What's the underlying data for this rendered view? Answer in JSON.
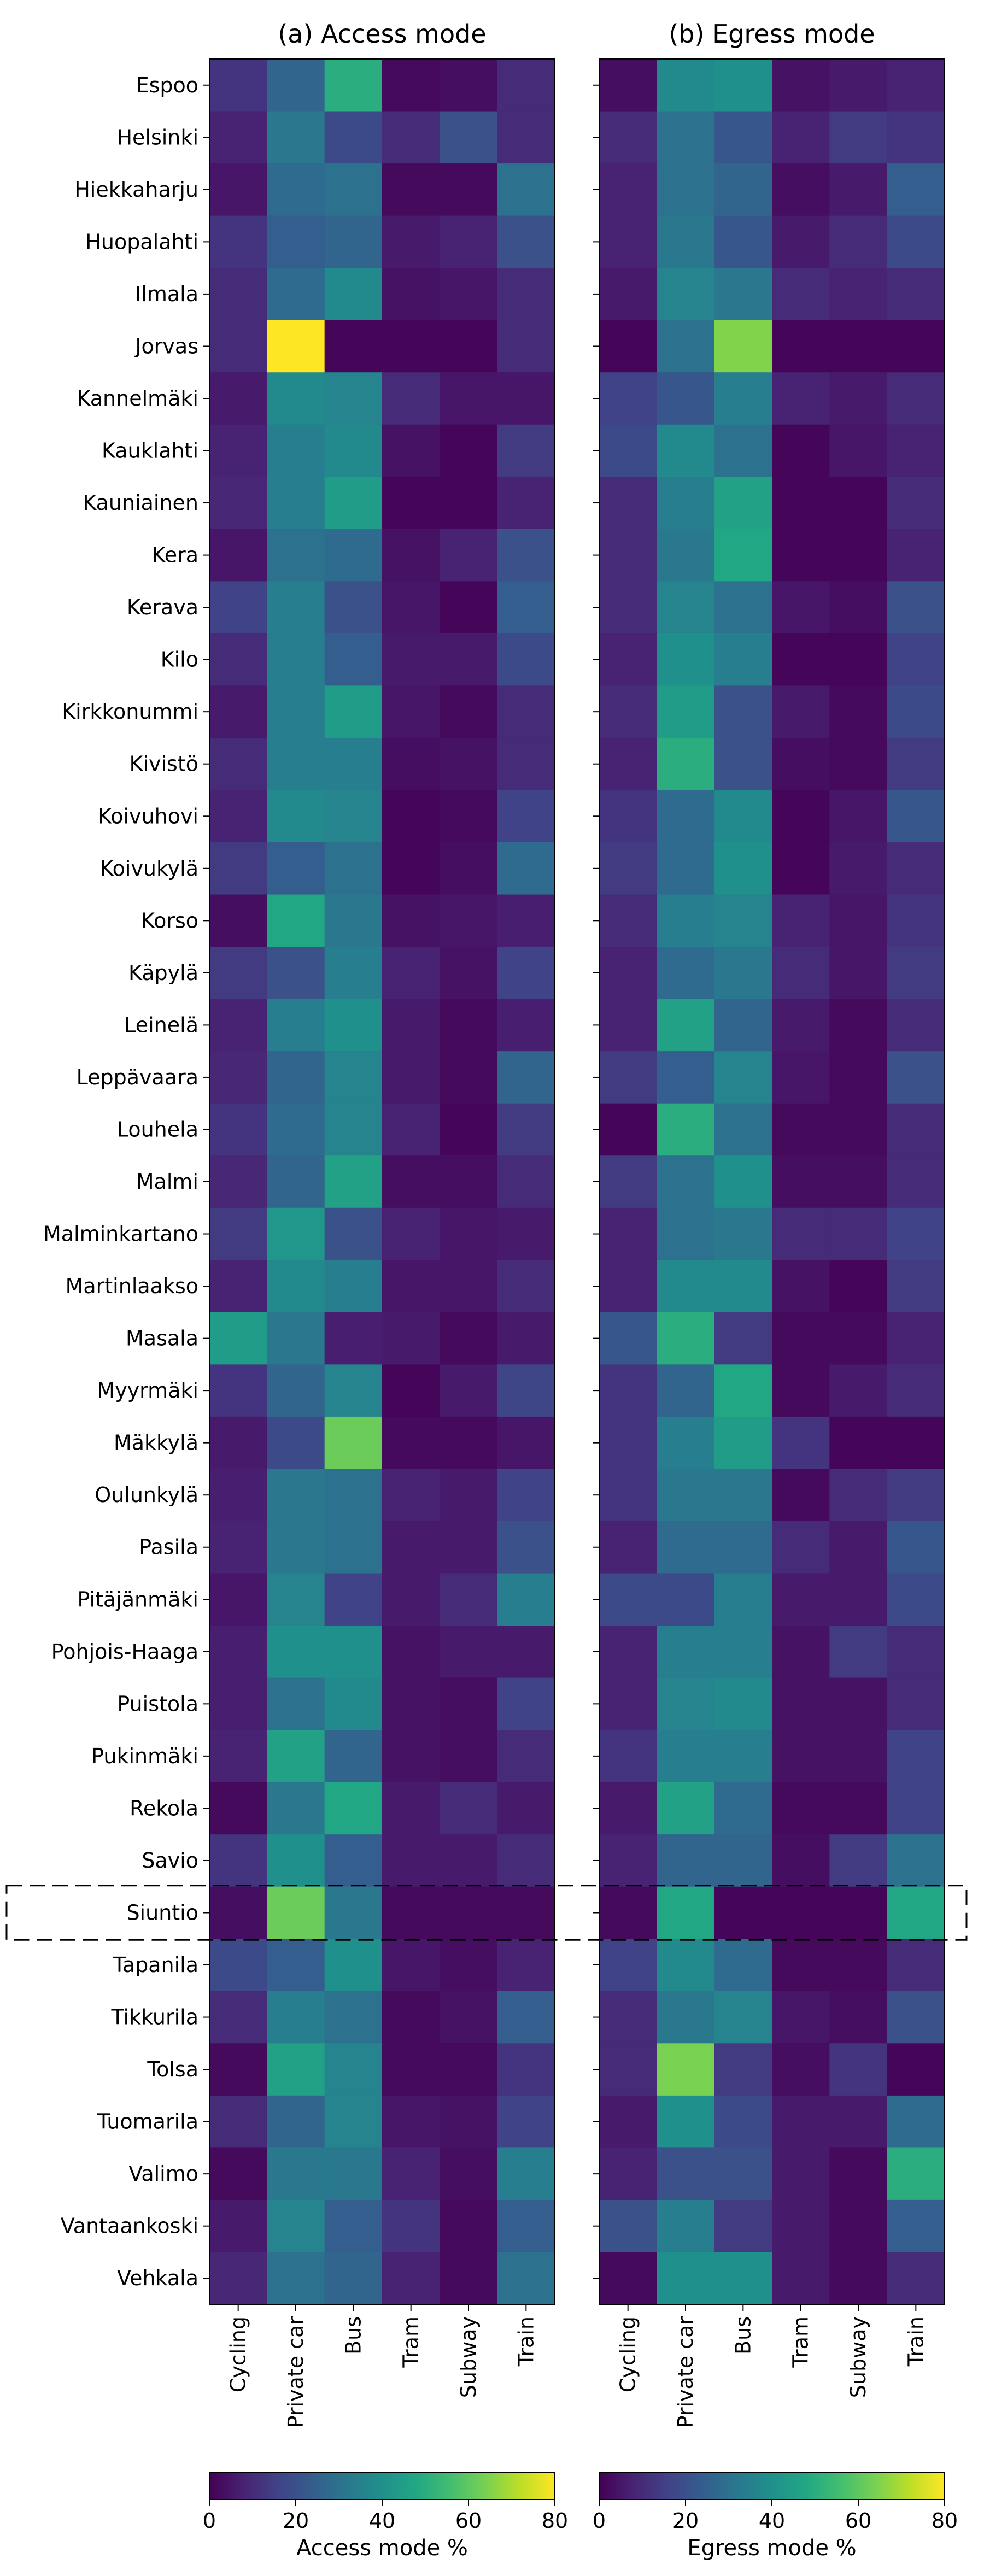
{
  "chart_data": [
    {
      "type": "heatmap",
      "title": "(a) Access mode",
      "x_categories": [
        "Cycling",
        "Private car",
        "Bus",
        "Tram",
        "Subway",
        "Train"
      ],
      "y_categories": [
        "Espoo",
        "Helsinki",
        "Hiekkaharju",
        "Huopalahti",
        "Ilmala",
        "Jorvas",
        "Kannelmäki",
        "Kauklahti",
        "Kauniainen",
        "Kera",
        "Kerava",
        "Kilo",
        "Kirkkonummi",
        "Kivistö",
        "Koivuhovi",
        "Koivukylä",
        "Korso",
        "Käpylä",
        "Leinelä",
        "Leppävaara",
        "Louhela",
        "Malmi",
        "Malminkartano",
        "Martinlaakso",
        "Masala",
        "Myyrmäki",
        "Mäkkylä",
        "Oulunkylä",
        "Pasila",
        "Pitäjänmäki",
        "Pohjois-Haaga",
        "Puistola",
        "Pukinmäki",
        "Rekola",
        "Savio",
        "Siuntio",
        "Tapanila",
        "Tikkurila",
        "Tolsa",
        "Tuomarila",
        "Valimo",
        "Vantaankoski",
        "Vehkala"
      ],
      "values": [
        [
          12,
          26,
          50,
          2,
          3,
          10
        ],
        [
          8,
          32,
          18,
          10,
          20,
          10
        ],
        [
          5,
          28,
          30,
          2,
          2,
          30
        ],
        [
          12,
          24,
          26,
          6,
          8,
          20
        ],
        [
          10,
          28,
          38,
          4,
          5,
          10
        ],
        [
          10,
          80,
          1,
          1,
          1,
          10
        ],
        [
          6,
          38,
          36,
          10,
          5,
          5
        ],
        [
          8,
          34,
          38,
          4,
          1,
          14
        ],
        [
          9,
          34,
          44,
          1,
          1,
          8
        ],
        [
          5,
          30,
          28,
          4,
          8,
          20
        ],
        [
          16,
          34,
          20,
          5,
          1,
          24
        ],
        [
          10,
          34,
          24,
          6,
          6,
          18
        ],
        [
          6,
          34,
          44,
          5,
          2,
          10
        ],
        [
          10,
          34,
          34,
          3,
          4,
          10
        ],
        [
          8,
          38,
          36,
          1,
          2,
          16
        ],
        [
          14,
          24,
          30,
          1,
          3,
          28
        ],
        [
          3,
          48,
          32,
          4,
          5,
          7
        ],
        [
          14,
          20,
          34,
          8,
          4,
          16
        ],
        [
          8,
          34,
          40,
          6,
          2,
          7
        ],
        [
          9,
          26,
          36,
          6,
          2,
          26
        ],
        [
          12,
          28,
          36,
          8,
          1,
          14
        ],
        [
          9,
          26,
          46,
          3,
          3,
          10
        ],
        [
          14,
          42,
          20,
          8,
          5,
          6
        ],
        [
          8,
          38,
          34,
          5,
          5,
          10
        ],
        [
          44,
          32,
          7,
          6,
          2,
          6
        ],
        [
          12,
          26,
          36,
          1,
          6,
          17
        ],
        [
          6,
          18,
          62,
          2,
          2,
          5
        ],
        [
          7,
          32,
          30,
          8,
          6,
          16
        ],
        [
          8,
          32,
          30,
          6,
          6,
          20
        ],
        [
          5,
          36,
          16,
          6,
          10,
          34
        ],
        [
          7,
          40,
          40,
          4,
          6,
          6
        ],
        [
          7,
          30,
          38,
          4,
          3,
          16
        ],
        [
          8,
          46,
          26,
          4,
          3,
          10
        ],
        [
          2,
          32,
          48,
          6,
          10,
          6
        ],
        [
          12,
          40,
          24,
          6,
          6,
          10
        ],
        [
          3,
          62,
          32,
          2,
          2,
          2
        ],
        [
          18,
          24,
          40,
          5,
          3,
          8
        ],
        [
          10,
          34,
          30,
          2,
          4,
          24
        ],
        [
          2,
          46,
          36,
          2,
          2,
          12
        ],
        [
          10,
          26,
          36,
          5,
          4,
          16
        ],
        [
          2,
          32,
          32,
          8,
          3,
          34
        ],
        [
          6,
          36,
          24,
          12,
          2,
          24
        ],
        [
          9,
          30,
          26,
          8,
          2,
          30
        ]
      ],
      "colorbar": {
        "label": "Access mode %",
        "range": [
          0,
          80
        ],
        "ticks": [
          0,
          20,
          40,
          60,
          80
        ]
      },
      "highlight": "Siuntio"
    },
    {
      "type": "heatmap",
      "title": "(b) Egress mode",
      "x_categories": [
        "Cycling",
        "Private car",
        "Bus",
        "Tram",
        "Subway",
        "Train"
      ],
      "y_categories": [
        "Espoo",
        "Helsinki",
        "Hiekkaharju",
        "Huopalahti",
        "Ilmala",
        "Jorvas",
        "Kannelmäki",
        "Kauklahti",
        "Kauniainen",
        "Kera",
        "Kerava",
        "Kilo",
        "Kirkkonummi",
        "Kivistö",
        "Koivuhovi",
        "Koivukylä",
        "Korso",
        "Käpylä",
        "Leinelä",
        "Leppävaara",
        "Louhela",
        "Malmi",
        "Malminkartano",
        "Martinlaakso",
        "Masala",
        "Myyrmäki",
        "Mäkkylä",
        "Oulunkylä",
        "Pasila",
        "Pitäjänmäki",
        "Pohjois-Haaga",
        "Puistola",
        "Pukinmäki",
        "Rekola",
        "Savio",
        "Siuntio",
        "Tapanila",
        "Tikkurila",
        "Tolsa",
        "Tuomarila",
        "Valimo",
        "Vantaankoski",
        "Vehkala"
      ],
      "values": [
        [
          3,
          38,
          40,
          4,
          6,
          8
        ],
        [
          10,
          30,
          22,
          8,
          14,
          12
        ],
        [
          8,
          30,
          26,
          3,
          6,
          24
        ],
        [
          8,
          32,
          22,
          6,
          10,
          18
        ],
        [
          6,
          36,
          32,
          10,
          8,
          10
        ],
        [
          1,
          30,
          65,
          1,
          1,
          1
        ],
        [
          16,
          22,
          34,
          8,
          6,
          10
        ],
        [
          18,
          38,
          30,
          1,
          5,
          8
        ],
        [
          10,
          34,
          46,
          1,
          1,
          10
        ],
        [
          10,
          32,
          48,
          1,
          1,
          8
        ],
        [
          10,
          36,
          30,
          5,
          3,
          20
        ],
        [
          8,
          40,
          34,
          1,
          1,
          16
        ],
        [
          10,
          44,
          20,
          6,
          2,
          18
        ],
        [
          8,
          50,
          20,
          3,
          2,
          14
        ],
        [
          12,
          28,
          38,
          1,
          5,
          22
        ],
        [
          14,
          28,
          40,
          1,
          6,
          10
        ],
        [
          10,
          34,
          36,
          8,
          5,
          12
        ],
        [
          8,
          28,
          32,
          10,
          5,
          14
        ],
        [
          8,
          46,
          26,
          6,
          2,
          10
        ],
        [
          14,
          24,
          36,
          5,
          2,
          20
        ],
        [
          1,
          50,
          30,
          2,
          2,
          10
        ],
        [
          14,
          30,
          40,
          3,
          3,
          10
        ],
        [
          8,
          30,
          32,
          10,
          10,
          16
        ],
        [
          8,
          38,
          38,
          4,
          1,
          14
        ],
        [
          22,
          50,
          14,
          2,
          2,
          8
        ],
        [
          12,
          26,
          48,
          2,
          6,
          10
        ],
        [
          12,
          34,
          44,
          12,
          1,
          1
        ],
        [
          12,
          32,
          32,
          2,
          10,
          14
        ],
        [
          8,
          28,
          28,
          10,
          6,
          22
        ],
        [
          18,
          18,
          34,
          6,
          6,
          18
        ],
        [
          8,
          34,
          34,
          4,
          14,
          10
        ],
        [
          8,
          36,
          38,
          4,
          4,
          10
        ],
        [
          12,
          34,
          34,
          4,
          4,
          16
        ],
        [
          6,
          46,
          28,
          2,
          2,
          16
        ],
        [
          8,
          26,
          26,
          3,
          14,
          30
        ],
        [
          2,
          48,
          1,
          1,
          1,
          48
        ],
        [
          16,
          38,
          28,
          2,
          2,
          10
        ],
        [
          10,
          32,
          36,
          5,
          3,
          20
        ],
        [
          10,
          64,
          14,
          3,
          12,
          1
        ],
        [
          6,
          40,
          18,
          6,
          6,
          28
        ],
        [
          8,
          20,
          20,
          6,
          2,
          50
        ],
        [
          20,
          34,
          14,
          6,
          2,
          24
        ],
        [
          2,
          40,
          40,
          6,
          2,
          10
        ]
      ],
      "colorbar": {
        "label": "Egress mode %",
        "range": [
          0,
          80
        ],
        "ticks": [
          0,
          20,
          40,
          60,
          80
        ]
      },
      "highlight": "Siuntio"
    }
  ]
}
